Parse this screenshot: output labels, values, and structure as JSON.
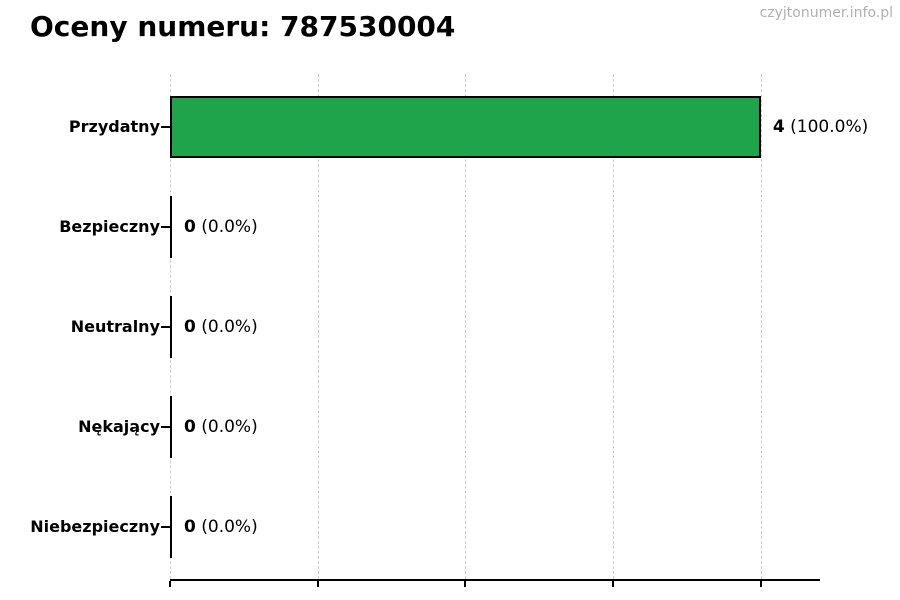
{
  "page": {
    "title": "Oceny numeru: 787530004",
    "watermark": "czyjtonumer.info.pl"
  },
  "chart_data": {
    "type": "bar",
    "orientation": "horizontal",
    "title": "Oceny numeru: 787530004",
    "categories": [
      "Przydatny",
      "Bezpieczny",
      "Neutralny",
      "Nękający",
      "Niebezpieczny"
    ],
    "values": [
      4,
      0,
      0,
      0,
      0
    ],
    "percentages": [
      "100.0%",
      "0.0%",
      "0.0%",
      "0.0%",
      "0.0%"
    ],
    "counts_text": [
      "4",
      "0",
      "0",
      "0",
      "0"
    ],
    "pcts_text": [
      "(100.0%)",
      "(0.0%)",
      "(0.0%)",
      "(0.0%)",
      "(0.0%)"
    ],
    "value_labels": [
      "4 (100.0%)",
      "0 (0.0%)",
      "0 (0.0%)",
      "0 (0.0%)",
      "0 (0.0%)"
    ],
    "xlabel": "",
    "ylabel": "",
    "xlim": [
      0,
      4.4
    ],
    "xticks": [
      0,
      1,
      2,
      3,
      4
    ],
    "grid": "vertical-dashed",
    "legend": "none",
    "bar_color": "#1fa44c",
    "bar_border_color": "#000000",
    "gridline_color": "#cfcfcf",
    "axis_color": "#000000",
    "watermark_color": "#b0b0b0"
  }
}
